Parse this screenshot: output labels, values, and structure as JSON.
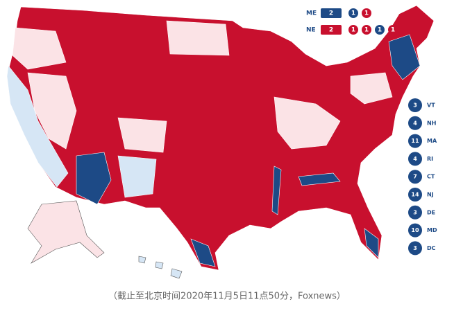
{
  "split_states": [
    {
      "state": "ME",
      "badges": [
        {
          "value": 2,
          "color": "#1d4a86"
        },
        {
          "value": 1,
          "color": "#1d4a86"
        },
        {
          "value": 1,
          "color": "#c8102e"
        }
      ]
    },
    {
      "state": "NE",
      "badges": [
        {
          "value": 2,
          "color": "#c8102e"
        },
        {
          "value": 1,
          "color": "#c8102e"
        },
        {
          "value": 1,
          "color": "#c8102e"
        },
        {
          "value": 1,
          "color": "#1d4a86"
        },
        {
          "value": 1,
          "color": "#c8102e"
        }
      ]
    }
  ],
  "small_states": [
    {
      "votes": 3,
      "state": "VT"
    },
    {
      "votes": 4,
      "state": "NH"
    },
    {
      "votes": 11,
      "state": "MA"
    },
    {
      "votes": 4,
      "state": "RI"
    },
    {
      "votes": 7,
      "state": "CT"
    },
    {
      "votes": 14,
      "state": "NJ"
    },
    {
      "votes": 3,
      "state": "DE"
    },
    {
      "votes": 10,
      "state": "MD"
    },
    {
      "votes": 3,
      "state": "DC"
    }
  ],
  "small_states_color": "#1d4a86",
  "caption": "（截止至北京时间2020年11月5日11点50分，Foxnews）"
}
